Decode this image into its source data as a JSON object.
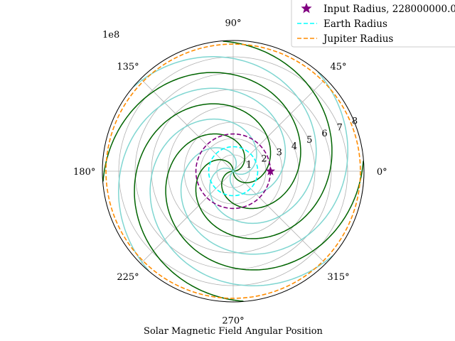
{
  "chart_data": {
    "type": "polar-line",
    "xlabel": "Solar Magnetic Field Angular Position",
    "radial_scale_label": "1e8",
    "r_max": 8,
    "r_ticks": [
      "1",
      "2",
      "3",
      "4",
      "5",
      "6",
      "7",
      "8"
    ],
    "theta_ticks": [
      {
        "deg": 0,
        "label": "0°"
      },
      {
        "deg": 45,
        "label": "45°"
      },
      {
        "deg": 90,
        "label": "90°"
      },
      {
        "deg": 135,
        "label": "135°"
      },
      {
        "deg": 180,
        "label": "180°"
      },
      {
        "deg": 225,
        "label": "225°"
      },
      {
        "deg": 270,
        "label": "270°"
      },
      {
        "deg": 315,
        "label": "315°"
      }
    ],
    "grid": true,
    "legend": {
      "placement": "top-right",
      "entries": [
        {
          "label": "Input Radius, 228000000.0",
          "marker": "star",
          "color": "#800080"
        },
        {
          "label": "Earth Radius",
          "style": "dashed",
          "color": "#00ffff"
        },
        {
          "label": "Jupiter Radius",
          "style": "dashed",
          "color": "#ff8c00"
        }
      ]
    },
    "series": [
      {
        "color": "#006400",
        "kind": "spiral",
        "r_per_deg": 0.0219,
        "offsets_deg": [
          0,
          90,
          180,
          270
        ]
      },
      {
        "color": "#7fd6d1",
        "kind": "spiral",
        "r_per_deg": 0.0219,
        "offsets_deg": [
          45,
          135,
          225,
          315
        ]
      },
      {
        "color": "#800080",
        "kind": "circle",
        "style": "dashed",
        "r": 2.28
      },
      {
        "color": "#00ffff",
        "kind": "circle",
        "style": "dashed",
        "r": 1.5
      },
      {
        "color": "#ff8c00",
        "kind": "circle",
        "style": "dashed",
        "r": 7.78
      }
    ],
    "marker": {
      "theta_deg": 0,
      "r": 2.28,
      "color": "#800080",
      "shape": "star"
    }
  }
}
